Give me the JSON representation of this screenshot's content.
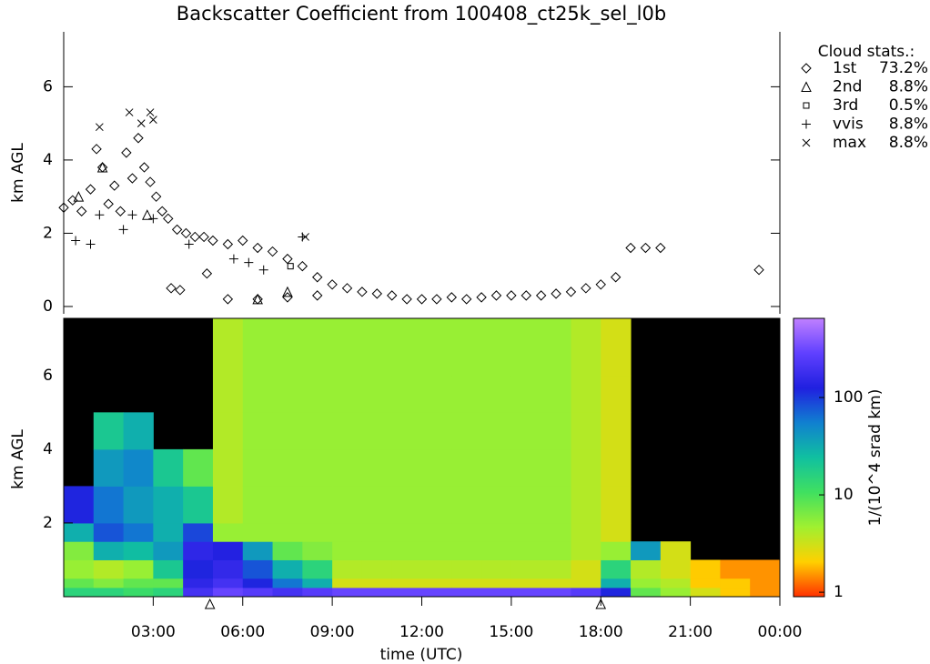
{
  "chart_data": [
    {
      "type": "scatter",
      "title": "Backscatter Coefficient from 100408_ct25k_sel_l0b",
      "ylabel": "km AGL",
      "xlim": [
        0,
        24
      ],
      "ylim": [
        -0.2,
        7.5
      ],
      "yticks": [
        0,
        2,
        4,
        6
      ],
      "legend_title": "Cloud stats.:",
      "legend": "right",
      "series": [
        {
          "name": "1st",
          "marker": "diamond",
          "color": "#000000",
          "stat": {
            "value": 73.2,
            "label": "73.2%"
          },
          "x": [
            0.0,
            0.3,
            0.6,
            0.9,
            1.1,
            1.3,
            1.5,
            1.7,
            1.9,
            2.1,
            2.3,
            2.5,
            2.7,
            2.9,
            3.1,
            3.3,
            3.5,
            3.8,
            4.1,
            4.4,
            4.7,
            5.0,
            5.5,
            6.0,
            6.5,
            7.0,
            7.5,
            8.0,
            8.5,
            9.0,
            9.5,
            10,
            10.5,
            11,
            11.5,
            12,
            12.5,
            13,
            13.5,
            14,
            14.5,
            15,
            15.5,
            16,
            16.5,
            17,
            17.5,
            18,
            18.5,
            19,
            19.5,
            20,
            3.6,
            3.9,
            4.8,
            5.5,
            6.5,
            7.5,
            8.5,
            23.3
          ],
          "y": [
            2.7,
            2.9,
            2.6,
            3.2,
            4.3,
            3.8,
            2.8,
            3.3,
            2.6,
            4.2,
            3.5,
            4.6,
            3.8,
            3.4,
            3.0,
            2.6,
            2.4,
            2.1,
            2.0,
            1.9,
            1.9,
            1.8,
            1.7,
            1.8,
            1.6,
            1.5,
            1.3,
            1.1,
            0.8,
            0.6,
            0.5,
            0.4,
            0.35,
            0.3,
            0.2,
            0.2,
            0.2,
            0.25,
            0.2,
            0.25,
            0.3,
            0.3,
            0.3,
            0.3,
            0.35,
            0.4,
            0.5,
            0.6,
            0.8,
            1.6,
            1.6,
            1.6,
            0.5,
            0.45,
            0.9,
            0.2,
            0.2,
            0.25,
            0.3,
            1.0
          ]
        },
        {
          "name": "2nd",
          "marker": "triangle",
          "color": "#000000",
          "stat": {
            "value": 8.8,
            "label": "8.8%"
          },
          "x": [
            0.5,
            1.3,
            2.8,
            6.5,
            7.5
          ],
          "y": [
            3.0,
            3.8,
            2.5,
            0.2,
            0.4
          ]
        },
        {
          "name": "3rd",
          "marker": "square",
          "color": "#000000",
          "stat": {
            "value": 0.5,
            "label": "0.5%"
          },
          "x": [
            7.6
          ],
          "y": [
            1.1
          ]
        },
        {
          "name": "vvis",
          "marker": "plus",
          "color": "#000000",
          "stat": {
            "value": 8.8,
            "label": "8.8%"
          },
          "x": [
            0.4,
            0.9,
            1.2,
            2.0,
            2.3,
            3.0,
            4.2,
            5.7,
            6.2,
            6.7,
            8.0
          ],
          "y": [
            1.8,
            1.7,
            2.5,
            2.1,
            2.5,
            2.4,
            1.7,
            1.3,
            1.2,
            1.0,
            1.9
          ]
        },
        {
          "name": "max",
          "marker": "cross",
          "color": "#000000",
          "stat": {
            "value": 8.8,
            "label": "8.8%"
          },
          "x": [
            1.2,
            2.2,
            2.6,
            2.9,
            3.0,
            8.1
          ],
          "y": [
            4.9,
            5.3,
            5.0,
            5.3,
            5.1,
            1.9
          ]
        }
      ]
    },
    {
      "type": "heatmap",
      "ylabel": "km AGL",
      "xlabel": "time (UTC)",
      "xlim": [
        0,
        24
      ],
      "ylim": [
        0,
        7.55
      ],
      "yticks": [
        2,
        4,
        6
      ],
      "xticks": [
        {
          "value": 3,
          "label": "03:00"
        },
        {
          "value": 6,
          "label": "06:00"
        },
        {
          "value": 9,
          "label": "09:00"
        },
        {
          "value": 12,
          "label": "12:00"
        },
        {
          "value": 15,
          "label": "15:00"
        },
        {
          "value": 18,
          "label": "18:00"
        },
        {
          "value": 21,
          "label": "21:00"
        },
        {
          "value": 24,
          "label": "00:00"
        }
      ],
      "x_bins": [
        0,
        1,
        2,
        3,
        4,
        5,
        6,
        7,
        8,
        9,
        10,
        11,
        12,
        13,
        14,
        15,
        16,
        17,
        18,
        19,
        20,
        21,
        22,
        23,
        24
      ],
      "y_bins": [
        0,
        0.25,
        0.5,
        1,
        1.5,
        2,
        3,
        4,
        5,
        6,
        7.55
      ],
      "z": [
        [
          15,
          8,
          5,
          6,
          30,
          120,
          null,
          null,
          null,
          null
        ],
        [
          15,
          6,
          4,
          30,
          80,
          60,
          40,
          20,
          null,
          null
        ],
        [
          12,
          8,
          5,
          25,
          60,
          40,
          50,
          30,
          null,
          null
        ],
        [
          15,
          8,
          20,
          40,
          30,
          30,
          20,
          null,
          null,
          null
        ],
        [
          200,
          150,
          120,
          150,
          90,
          20,
          8,
          null,
          null,
          null
        ],
        [
          300,
          200,
          160,
          130,
          5,
          4,
          4,
          4,
          4,
          4
        ],
        [
          250,
          120,
          80,
          40,
          5,
          5,
          5,
          5,
          5,
          5
        ],
        [
          200,
          60,
          30,
          8,
          5,
          5,
          5,
          5,
          5,
          5
        ],
        [
          250,
          30,
          15,
          6,
          5,
          5,
          5,
          5,
          5,
          5
        ],
        [
          300,
          3,
          4,
          5,
          5,
          5,
          5,
          5,
          5,
          5
        ],
        [
          300,
          3,
          4,
          5,
          5,
          5,
          5,
          5,
          5,
          5
        ],
        [
          300,
          3,
          4,
          5,
          5,
          5,
          5,
          5,
          5,
          5
        ],
        [
          300,
          3,
          4,
          5,
          5,
          5,
          5,
          5,
          5,
          5
        ],
        [
          300,
          3,
          4,
          5,
          5,
          5,
          5,
          5,
          5,
          5
        ],
        [
          300,
          3,
          4,
          5,
          5,
          5,
          5,
          5,
          5,
          5
        ],
        [
          300,
          3,
          4,
          5,
          5,
          5,
          5,
          5,
          5,
          5
        ],
        [
          300,
          3,
          4,
          5,
          5,
          5,
          5,
          5,
          5,
          5
        ],
        [
          250,
          3,
          3,
          4,
          4,
          4,
          4,
          4,
          4,
          4
        ],
        [
          120,
          30,
          15,
          5,
          3,
          3,
          3,
          3,
          3,
          3
        ],
        [
          8,
          5,
          4,
          40,
          null,
          null,
          null,
          null,
          null,
          null
        ],
        [
          5,
          4,
          3,
          3,
          null,
          null,
          null,
          null,
          null,
          null
        ],
        [
          3,
          2,
          2,
          null,
          null,
          null,
          null,
          null,
          null,
          null
        ],
        [
          2,
          2,
          1.5,
          null,
          null,
          null,
          null,
          null,
          null,
          null
        ],
        [
          1.5,
          1.5,
          1.5,
          null,
          null,
          null,
          null,
          null,
          null,
          null
        ]
      ],
      "flags_x": [
        4.9,
        18.0
      ],
      "clim": [
        0.9,
        650
      ],
      "log_color": true,
      "colormap": [
        "#ff3000",
        "#ffd000",
        "#a0f030",
        "#40e060",
        "#10c0a0",
        "#1080d0",
        "#2020e0",
        "#6040ff",
        "#c080ff"
      ],
      "cbar_ticks": [
        1,
        10,
        100
      ],
      "cbar_label": "1/(10^4 srad km)"
    }
  ]
}
